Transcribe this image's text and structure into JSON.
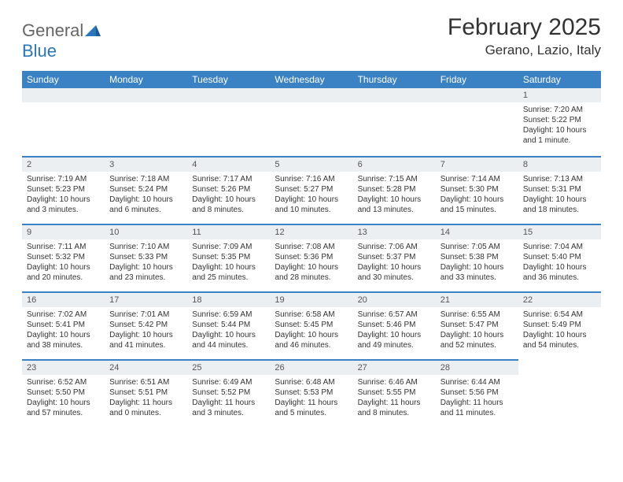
{
  "brand": {
    "part1": "General",
    "part2": "Blue"
  },
  "title": "February 2025",
  "location": "Gerano, Lazio, Italy",
  "colors": {
    "header_bg": "#3b82c4",
    "header_text": "#ffffff",
    "daynum_bg": "#eceff1",
    "border": "#3b82c4",
    "background": "#ffffff",
    "text": "#333333",
    "logo_gray": "#666666",
    "logo_blue": "#2a75bb"
  },
  "typography": {
    "title_fontsize": 30,
    "location_fontsize": 17,
    "th_fontsize": 12,
    "daynum_fontsize": 11,
    "body_fontsize": 10
  },
  "weekdays": [
    "Sunday",
    "Monday",
    "Tuesday",
    "Wednesday",
    "Thursday",
    "Friday",
    "Saturday"
  ],
  "weeks": [
    [
      {
        "empty": true
      },
      {
        "empty": true
      },
      {
        "empty": true
      },
      {
        "empty": true
      },
      {
        "empty": true
      },
      {
        "empty": true
      },
      {
        "day": "1",
        "sunrise": "Sunrise: 7:20 AM",
        "sunset": "Sunset: 5:22 PM",
        "daylight1": "Daylight: 10 hours",
        "daylight2": "and 1 minute."
      }
    ],
    [
      {
        "day": "2",
        "sunrise": "Sunrise: 7:19 AM",
        "sunset": "Sunset: 5:23 PM",
        "daylight1": "Daylight: 10 hours",
        "daylight2": "and 3 minutes."
      },
      {
        "day": "3",
        "sunrise": "Sunrise: 7:18 AM",
        "sunset": "Sunset: 5:24 PM",
        "daylight1": "Daylight: 10 hours",
        "daylight2": "and 6 minutes."
      },
      {
        "day": "4",
        "sunrise": "Sunrise: 7:17 AM",
        "sunset": "Sunset: 5:26 PM",
        "daylight1": "Daylight: 10 hours",
        "daylight2": "and 8 minutes."
      },
      {
        "day": "5",
        "sunrise": "Sunrise: 7:16 AM",
        "sunset": "Sunset: 5:27 PM",
        "daylight1": "Daylight: 10 hours",
        "daylight2": "and 10 minutes."
      },
      {
        "day": "6",
        "sunrise": "Sunrise: 7:15 AM",
        "sunset": "Sunset: 5:28 PM",
        "daylight1": "Daylight: 10 hours",
        "daylight2": "and 13 minutes."
      },
      {
        "day": "7",
        "sunrise": "Sunrise: 7:14 AM",
        "sunset": "Sunset: 5:30 PM",
        "daylight1": "Daylight: 10 hours",
        "daylight2": "and 15 minutes."
      },
      {
        "day": "8",
        "sunrise": "Sunrise: 7:13 AM",
        "sunset": "Sunset: 5:31 PM",
        "daylight1": "Daylight: 10 hours",
        "daylight2": "and 18 minutes."
      }
    ],
    [
      {
        "day": "9",
        "sunrise": "Sunrise: 7:11 AM",
        "sunset": "Sunset: 5:32 PM",
        "daylight1": "Daylight: 10 hours",
        "daylight2": "and 20 minutes."
      },
      {
        "day": "10",
        "sunrise": "Sunrise: 7:10 AM",
        "sunset": "Sunset: 5:33 PM",
        "daylight1": "Daylight: 10 hours",
        "daylight2": "and 23 minutes."
      },
      {
        "day": "11",
        "sunrise": "Sunrise: 7:09 AM",
        "sunset": "Sunset: 5:35 PM",
        "daylight1": "Daylight: 10 hours",
        "daylight2": "and 25 minutes."
      },
      {
        "day": "12",
        "sunrise": "Sunrise: 7:08 AM",
        "sunset": "Sunset: 5:36 PM",
        "daylight1": "Daylight: 10 hours",
        "daylight2": "and 28 minutes."
      },
      {
        "day": "13",
        "sunrise": "Sunrise: 7:06 AM",
        "sunset": "Sunset: 5:37 PM",
        "daylight1": "Daylight: 10 hours",
        "daylight2": "and 30 minutes."
      },
      {
        "day": "14",
        "sunrise": "Sunrise: 7:05 AM",
        "sunset": "Sunset: 5:38 PM",
        "daylight1": "Daylight: 10 hours",
        "daylight2": "and 33 minutes."
      },
      {
        "day": "15",
        "sunrise": "Sunrise: 7:04 AM",
        "sunset": "Sunset: 5:40 PM",
        "daylight1": "Daylight: 10 hours",
        "daylight2": "and 36 minutes."
      }
    ],
    [
      {
        "day": "16",
        "sunrise": "Sunrise: 7:02 AM",
        "sunset": "Sunset: 5:41 PM",
        "daylight1": "Daylight: 10 hours",
        "daylight2": "and 38 minutes."
      },
      {
        "day": "17",
        "sunrise": "Sunrise: 7:01 AM",
        "sunset": "Sunset: 5:42 PM",
        "daylight1": "Daylight: 10 hours",
        "daylight2": "and 41 minutes."
      },
      {
        "day": "18",
        "sunrise": "Sunrise: 6:59 AM",
        "sunset": "Sunset: 5:44 PM",
        "daylight1": "Daylight: 10 hours",
        "daylight2": "and 44 minutes."
      },
      {
        "day": "19",
        "sunrise": "Sunrise: 6:58 AM",
        "sunset": "Sunset: 5:45 PM",
        "daylight1": "Daylight: 10 hours",
        "daylight2": "and 46 minutes."
      },
      {
        "day": "20",
        "sunrise": "Sunrise: 6:57 AM",
        "sunset": "Sunset: 5:46 PM",
        "daylight1": "Daylight: 10 hours",
        "daylight2": "and 49 minutes."
      },
      {
        "day": "21",
        "sunrise": "Sunrise: 6:55 AM",
        "sunset": "Sunset: 5:47 PM",
        "daylight1": "Daylight: 10 hours",
        "daylight2": "and 52 minutes."
      },
      {
        "day": "22",
        "sunrise": "Sunrise: 6:54 AM",
        "sunset": "Sunset: 5:49 PM",
        "daylight1": "Daylight: 10 hours",
        "daylight2": "and 54 minutes."
      }
    ],
    [
      {
        "day": "23",
        "sunrise": "Sunrise: 6:52 AM",
        "sunset": "Sunset: 5:50 PM",
        "daylight1": "Daylight: 10 hours",
        "daylight2": "and 57 minutes."
      },
      {
        "day": "24",
        "sunrise": "Sunrise: 6:51 AM",
        "sunset": "Sunset: 5:51 PM",
        "daylight1": "Daylight: 11 hours",
        "daylight2": "and 0 minutes."
      },
      {
        "day": "25",
        "sunrise": "Sunrise: 6:49 AM",
        "sunset": "Sunset: 5:52 PM",
        "daylight1": "Daylight: 11 hours",
        "daylight2": "and 3 minutes."
      },
      {
        "day": "26",
        "sunrise": "Sunrise: 6:48 AM",
        "sunset": "Sunset: 5:53 PM",
        "daylight1": "Daylight: 11 hours",
        "daylight2": "and 5 minutes."
      },
      {
        "day": "27",
        "sunrise": "Sunrise: 6:46 AM",
        "sunset": "Sunset: 5:55 PM",
        "daylight1": "Daylight: 11 hours",
        "daylight2": "and 8 minutes."
      },
      {
        "day": "28",
        "sunrise": "Sunrise: 6:44 AM",
        "sunset": "Sunset: 5:56 PM",
        "daylight1": "Daylight: 11 hours",
        "daylight2": "and 11 minutes."
      },
      {
        "empty": true,
        "noborder": true
      }
    ]
  ]
}
